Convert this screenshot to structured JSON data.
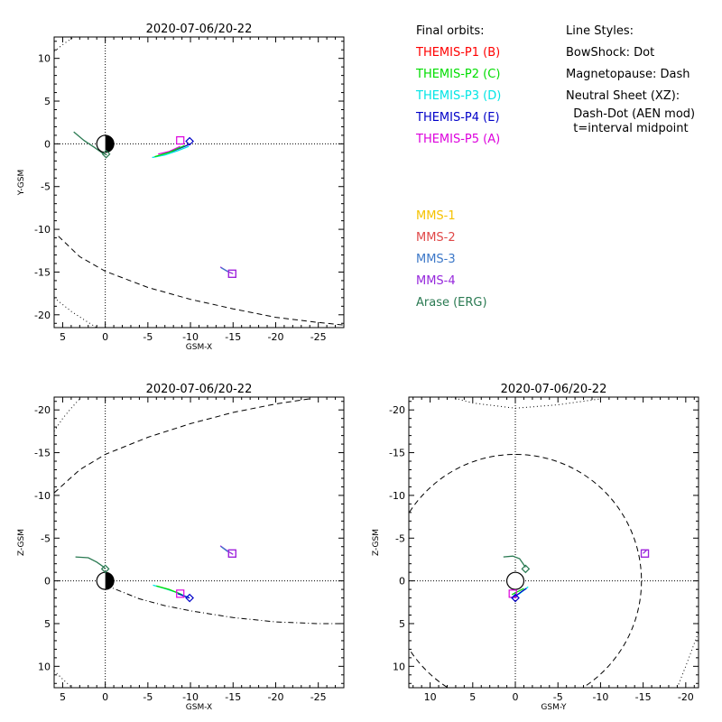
{
  "legend": {
    "orbits_heading": "Final orbits:",
    "styles_heading": "Line Styles:",
    "themis": [
      {
        "label": "THEMIS-P1 (B)",
        "color": "#ff0000"
      },
      {
        "label": "THEMIS-P2 (C)",
        "color": "#00dd00"
      },
      {
        "label": "THEMIS-P3 (D)",
        "color": "#00e5e5"
      },
      {
        "label": "THEMIS-P4 (E)",
        "color": "#0000c8"
      },
      {
        "label": "THEMIS-P5 (A)",
        "color": "#dd00dd"
      }
    ],
    "styles": [
      "BowShock: Dot",
      "Magnetopause: Dash",
      "Neutral Sheet (XZ):",
      "  Dash-Dot (AEN mod)",
      "  t=interval midpoint"
    ],
    "mms": [
      {
        "label": "MMS-1",
        "color": "#f5c200"
      },
      {
        "label": "MMS-2",
        "color": "#e04848"
      },
      {
        "label": "MMS-3",
        "color": "#3c78c8"
      },
      {
        "label": "MMS-4",
        "color": "#9628dc"
      },
      {
        "label": "Arase (ERG)",
        "color": "#2a7a52"
      }
    ]
  },
  "chart_data": [
    {
      "type": "scatter",
      "id": "xy",
      "title": "2020-07-06/20-22",
      "xlabel": "GSM-X",
      "ylabel": "Y-GSM",
      "xlim": [
        6,
        -28
      ],
      "ylim": [
        12.5,
        -21.5
      ],
      "xticks": [
        5,
        0,
        -5,
        -10,
        -15,
        -20,
        -25
      ],
      "yticks": [
        10,
        5,
        0,
        -5,
        -10,
        -15,
        -20
      ],
      "series": [
        {
          "kind": "bowshock",
          "style": "dot",
          "points": [
            [
              6,
              -18
            ],
            [
              4,
              -19.6
            ],
            [
              2,
              -20.9
            ],
            [
              0.5,
              -21.8
            ]
          ]
        },
        {
          "kind": "bowshock",
          "style": "dot",
          "points": [
            [
              6,
              10.8
            ],
            [
              5,
              11.6
            ],
            [
              4,
              12.3
            ],
            [
              3.5,
              12.7
            ]
          ]
        },
        {
          "kind": "magnetopause",
          "style": "dash",
          "points": [
            [
              5.5,
              -10.8
            ],
            [
              3,
              -13.2
            ],
            [
              0,
              -14.9
            ],
            [
              -5,
              -16.8
            ],
            [
              -10,
              -18.2
            ],
            [
              -15,
              -19.3
            ],
            [
              -20,
              -20.3
            ],
            [
              -25,
              -20.9
            ],
            [
              -28,
              -21.2
            ]
          ]
        },
        {
          "kind": "orbit",
          "color": "#2a7a52",
          "points": [
            [
              3.7,
              1.4
            ],
            [
              2.5,
              0.4
            ],
            [
              1.3,
              -0.4
            ],
            [
              0.3,
              -1.1
            ],
            [
              -0.2,
              -1.3
            ]
          ]
        },
        {
          "kind": "orbit",
          "color": "#00e5e5",
          "points": [
            [
              -5.5,
              -1.6
            ],
            [
              -7,
              -1.3
            ],
            [
              -8.5,
              -0.8
            ],
            [
              -9.8,
              -0.3
            ]
          ]
        },
        {
          "kind": "orbit",
          "color": "#0000c8",
          "points": [
            [
              -7.8,
              -0.9
            ],
            [
              -8.8,
              -0.5
            ],
            [
              -9.8,
              -0.1
            ]
          ]
        },
        {
          "kind": "orbit",
          "color": "#dd00dd",
          "points": [
            [
              -6.2,
              -1.2
            ],
            [
              -7.5,
              -0.9
            ],
            [
              -8.8,
              -0.3
            ]
          ]
        },
        {
          "kind": "orbit",
          "color": "#00dd00",
          "points": [
            [
              -5.8,
              -1.5
            ],
            [
              -7.5,
              -1.0
            ],
            [
              -9.3,
              -0.2
            ]
          ]
        },
        {
          "kind": "orbit",
          "color": "#9628dc",
          "points": [
            [
              -13.5,
              -14.4
            ],
            [
              -14.3,
              -14.9
            ],
            [
              -15,
              -15.2
            ]
          ]
        },
        {
          "kind": "orbit",
          "color": "#3c78c8",
          "points": [
            [
              -13.6,
              -14.5
            ],
            [
              -14.5,
              -15.0
            ]
          ]
        }
      ],
      "markers": [
        {
          "shape": "square",
          "color": "#dd00dd",
          "x": -8.8,
          "y": 0.4
        },
        {
          "shape": "diamond",
          "color": "#0000c8",
          "x": -9.9,
          "y": 0.3
        },
        {
          "shape": "diamond",
          "color": "#2a7a52",
          "x": -0.1,
          "y": -1.2
        },
        {
          "shape": "square",
          "color": "#dd00dd",
          "x": -14.9,
          "y": -15.2
        },
        {
          "shape": "square",
          "color": "#9628dc",
          "x": -14.9,
          "y": -15.2
        }
      ],
      "earth": {
        "x": 0,
        "y": 0,
        "style": "half"
      }
    },
    {
      "type": "scatter",
      "id": "xz",
      "title": "2020-07-06/20-22",
      "xlabel": "GSM-X",
      "ylabel": "Z-GSM",
      "xlim": [
        6,
        -28
      ],
      "ylim": [
        -21.5,
        12.5
      ],
      "xticks": [
        5,
        0,
        -5,
        -10,
        -15,
        -20,
        -25
      ],
      "yticks": [
        10,
        5,
        0,
        -5,
        -10,
        -15,
        -20
      ],
      "series": [
        {
          "kind": "bowshock",
          "style": "dot",
          "points": [
            [
              6,
              10.5
            ],
            [
              5,
              11.5
            ],
            [
              4,
              12.4
            ]
          ]
        },
        {
          "kind": "bowshock",
          "style": "dot",
          "points": [
            [
              6,
              -17.5
            ],
            [
              5,
              -19
            ],
            [
              4,
              -20.2
            ],
            [
              3,
              -21.3
            ]
          ]
        },
        {
          "kind": "magnetopause",
          "style": "dash",
          "points": [
            [
              6,
              -10.3
            ],
            [
              3,
              -13
            ],
            [
              0,
              -14.8
            ],
            [
              -5,
              -16.8
            ],
            [
              -10,
              -18.4
            ],
            [
              -15,
              -19.7
            ],
            [
              -20,
              -20.7
            ],
            [
              -24,
              -21.3
            ]
          ]
        },
        {
          "kind": "neutral-sheet",
          "style": "dashdot",
          "points": [
            [
              0,
              0.5
            ],
            [
              -2,
              1.3
            ],
            [
              -4,
              2.1
            ],
            [
              -7,
              2.9
            ],
            [
              -10,
              3.5
            ],
            [
              -15,
              4.3
            ],
            [
              -20,
              4.8
            ],
            [
              -25,
              5.0
            ],
            [
              -28,
              5.0
            ]
          ]
        },
        {
          "kind": "orbit",
          "color": "#2a7a52",
          "points": [
            [
              3.5,
              -2.8
            ],
            [
              2,
              -2.7
            ],
            [
              1,
              -2.2
            ],
            [
              0.3,
              -1.7
            ],
            [
              0,
              -1.4
            ]
          ]
        },
        {
          "kind": "orbit",
          "color": "#00e5e5",
          "points": [
            [
              -5.6,
              0.5
            ],
            [
              -7,
              0.9
            ],
            [
              -8.5,
              1.4
            ],
            [
              -9.9,
              2.0
            ]
          ]
        },
        {
          "kind": "orbit",
          "color": "#00dd00",
          "points": [
            [
              -6,
              0.6
            ],
            [
              -7.5,
              1.0
            ],
            [
              -9,
              1.6
            ]
          ]
        },
        {
          "kind": "orbit",
          "color": "#0000c8",
          "points": [
            [
              -8.5,
              1.5
            ],
            [
              -9.3,
              1.8
            ],
            [
              -9.9,
              2.0
            ]
          ]
        },
        {
          "kind": "orbit",
          "color": "#9628dc",
          "points": [
            [
              -13.5,
              -4.1
            ],
            [
              -14.2,
              -3.6
            ],
            [
              -15,
              -3.1
            ]
          ]
        },
        {
          "kind": "orbit",
          "color": "#3c78c8",
          "points": [
            [
              -13.6,
              -4.0
            ],
            [
              -14.4,
              -3.4
            ]
          ]
        }
      ],
      "markers": [
        {
          "shape": "square",
          "color": "#dd00dd",
          "x": -8.8,
          "y": 1.5
        },
        {
          "shape": "diamond",
          "color": "#0000c8",
          "x": -9.9,
          "y": 2.0
        },
        {
          "shape": "diamond",
          "color": "#2a7a52",
          "x": 0,
          "y": -1.4
        },
        {
          "shape": "square",
          "color": "#dd00dd",
          "x": -14.9,
          "y": -3.2
        },
        {
          "shape": "square",
          "color": "#9628dc",
          "x": -14.9,
          "y": -3.2
        }
      ],
      "earth": {
        "x": 0,
        "y": 0,
        "style": "half"
      }
    },
    {
      "type": "scatter",
      "id": "yz",
      "title": "2020-07-06/20-22",
      "xlabel": "GSM-Y",
      "ylabel": "Z-GSM",
      "xlim": [
        12.5,
        -21.5
      ],
      "ylim": [
        -21.5,
        12.5
      ],
      "xticks": [
        10,
        5,
        0,
        -5,
        -10,
        -15,
        -20
      ],
      "yticks": [
        10,
        5,
        0,
        -5,
        -10,
        -15,
        -20
      ],
      "series": [
        {
          "kind": "bowshock",
          "style": "dot",
          "points": [
            [
              -19,
              12.5
            ],
            [
              -20,
              10
            ],
            [
              -21.5,
              6
            ]
          ]
        },
        {
          "kind": "bowshock",
          "style": "dot",
          "points": [
            [
              7.5,
              -21.5
            ],
            [
              5,
              -20.8
            ],
            [
              0,
              -20.2
            ],
            [
              -5,
              -20.6
            ],
            [
              -10,
              -21.3
            ]
          ]
        },
        {
          "kind": "orbit",
          "color": "#2a7a52",
          "points": [
            [
              1.4,
              -2.8
            ],
            [
              0.3,
              -2.9
            ],
            [
              -0.5,
              -2.6
            ],
            [
              -1.2,
              -1.6
            ]
          ]
        },
        {
          "kind": "orbit",
          "color": "#00e5e5",
          "points": [
            [
              0.5,
              2.0
            ],
            [
              -0.5,
              1.5
            ],
            [
              -1.5,
              0.7
            ]
          ]
        },
        {
          "kind": "orbit",
          "color": "#0000c8",
          "points": [
            [
              0.3,
              2.0
            ],
            [
              -0.8,
              1.2
            ],
            [
              -1.3,
              0.9
            ]
          ]
        },
        {
          "kind": "orbit",
          "color": "#00dd00",
          "points": [
            [
              0.4,
              1.6
            ],
            [
              -1.0,
              0.9
            ]
          ]
        },
        {
          "kind": "orbit",
          "color": "#9628dc",
          "points": [
            [
              -15.4,
              -3.6
            ],
            [
              -15.0,
              -3.2
            ]
          ]
        }
      ],
      "magnetopause_circle": {
        "cx": 0,
        "cy": 0,
        "r": 14.8
      },
      "markers": [
        {
          "shape": "square",
          "color": "#dd00dd",
          "x": 0.3,
          "y": 1.5
        },
        {
          "shape": "diamond",
          "color": "#0000c8",
          "x": 0,
          "y": 2.0
        },
        {
          "shape": "diamond",
          "color": "#2a7a52",
          "x": -1.2,
          "y": -1.4
        },
        {
          "shape": "square",
          "color": "#dd00dd",
          "x": -15.2,
          "y": -3.2
        },
        {
          "shape": "square",
          "color": "#9628dc",
          "x": -15.2,
          "y": -3.2
        }
      ],
      "earth": {
        "x": 0,
        "y": 0,
        "style": "open"
      }
    }
  ]
}
